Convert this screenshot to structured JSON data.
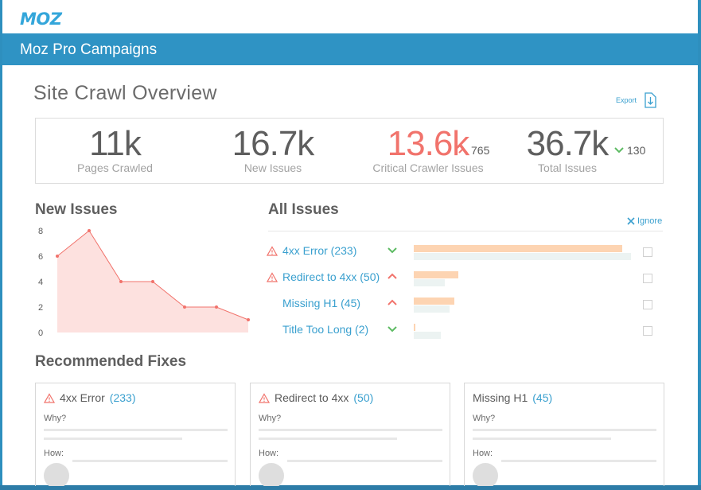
{
  "app": {
    "logo": "MOZ",
    "title": "Moz Pro Campaigns"
  },
  "page": {
    "title": "Site Crawl Overview",
    "export_label": "Export"
  },
  "stats": [
    {
      "value": "11k",
      "label": "Pages Crawled"
    },
    {
      "value": "16.7k",
      "label": "New Issues"
    },
    {
      "value": "13.6k",
      "label": "Critical Crawler Issues",
      "delta": "765",
      "delta_direction": "up"
    },
    {
      "value": "36.7k",
      "label": "Total Issues",
      "delta": "130",
      "delta_direction": "down"
    }
  ],
  "new_issues": {
    "title": "New Issues",
    "chart_data": {
      "type": "area",
      "x": [
        1,
        2,
        3,
        4,
        5,
        6,
        7
      ],
      "values": [
        6,
        8,
        4,
        4,
        2,
        2,
        1
      ],
      "yticks": [
        "0",
        "2",
        "4",
        "6",
        "8"
      ],
      "ylim": [
        0,
        8
      ],
      "color": "#f1736c"
    }
  },
  "all_issues": {
    "title": "All Issues",
    "ignore_label": "Ignore",
    "max_value": 233,
    "rows": [
      {
        "label": "4xx Error (233)",
        "warning": true,
        "trend": "down",
        "current": 233,
        "previous": 243
      },
      {
        "label": "Redirect to 4xx (50)",
        "warning": true,
        "trend": "up",
        "current": 50,
        "previous": 35
      },
      {
        "label": "Missing H1 (45)",
        "warning": false,
        "trend": "up",
        "current": 45,
        "previous": 40
      },
      {
        "label": "Title Too Long (2)",
        "warning": false,
        "trend": "down",
        "current": 2,
        "previous": 30
      }
    ]
  },
  "recommended": {
    "title": "Recommended Fixes",
    "why_label": "Why?",
    "how_label": "How:",
    "cards": [
      {
        "name": "4xx Error",
        "count": "(233)",
        "warning": true
      },
      {
        "name": "Redirect to 4xx",
        "count": "(50)",
        "warning": true
      },
      {
        "name": "Missing H1",
        "count": "(45)",
        "warning": false
      }
    ]
  },
  "colors": {
    "brand": "#2f93c4",
    "link": "#3aa0cf",
    "critical": "#f1736c",
    "good": "#5dbb63",
    "bar_current": "#fdd4b2",
    "bar_previous": "#ecf3f2"
  }
}
